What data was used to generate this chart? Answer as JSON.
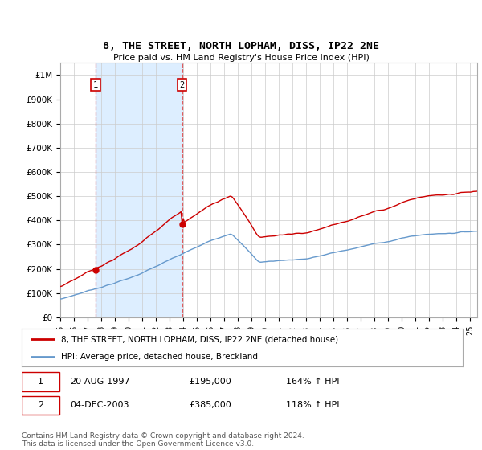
{
  "title": "8, THE STREET, NORTH LOPHAM, DISS, IP22 2NE",
  "subtitle": "Price paid vs. HM Land Registry's House Price Index (HPI)",
  "hpi_label": "HPI: Average price, detached house, Breckland",
  "property_label": "8, THE STREET, NORTH LOPHAM, DISS, IP22 2NE (detached house)",
  "transaction1_date": "20-AUG-1997",
  "transaction1_price": 195000,
  "transaction1_hpi": "164% ↑ HPI",
  "transaction2_date": "04-DEC-2003",
  "transaction2_price": 385000,
  "transaction2_hpi": "118% ↑ HPI",
  "footer": "Contains HM Land Registry data © Crown copyright and database right 2024.\nThis data is licensed under the Open Government Licence v3.0.",
  "red_line_color": "#cc0000",
  "blue_line_color": "#6699cc",
  "shade_color": "#ddeeff",
  "vline_color": "#dd4444",
  "background_color": "#ffffff",
  "plot_bg_color": "#ffffff",
  "grid_color": "#cccccc",
  "ylim_min": 0,
  "ylim_max": 1050000,
  "xmin": 1995,
  "xmax": 2025.5,
  "buy1_year": 1997.583,
  "buy1_price": 195000,
  "buy2_year": 2003.917,
  "buy2_price": 385000
}
